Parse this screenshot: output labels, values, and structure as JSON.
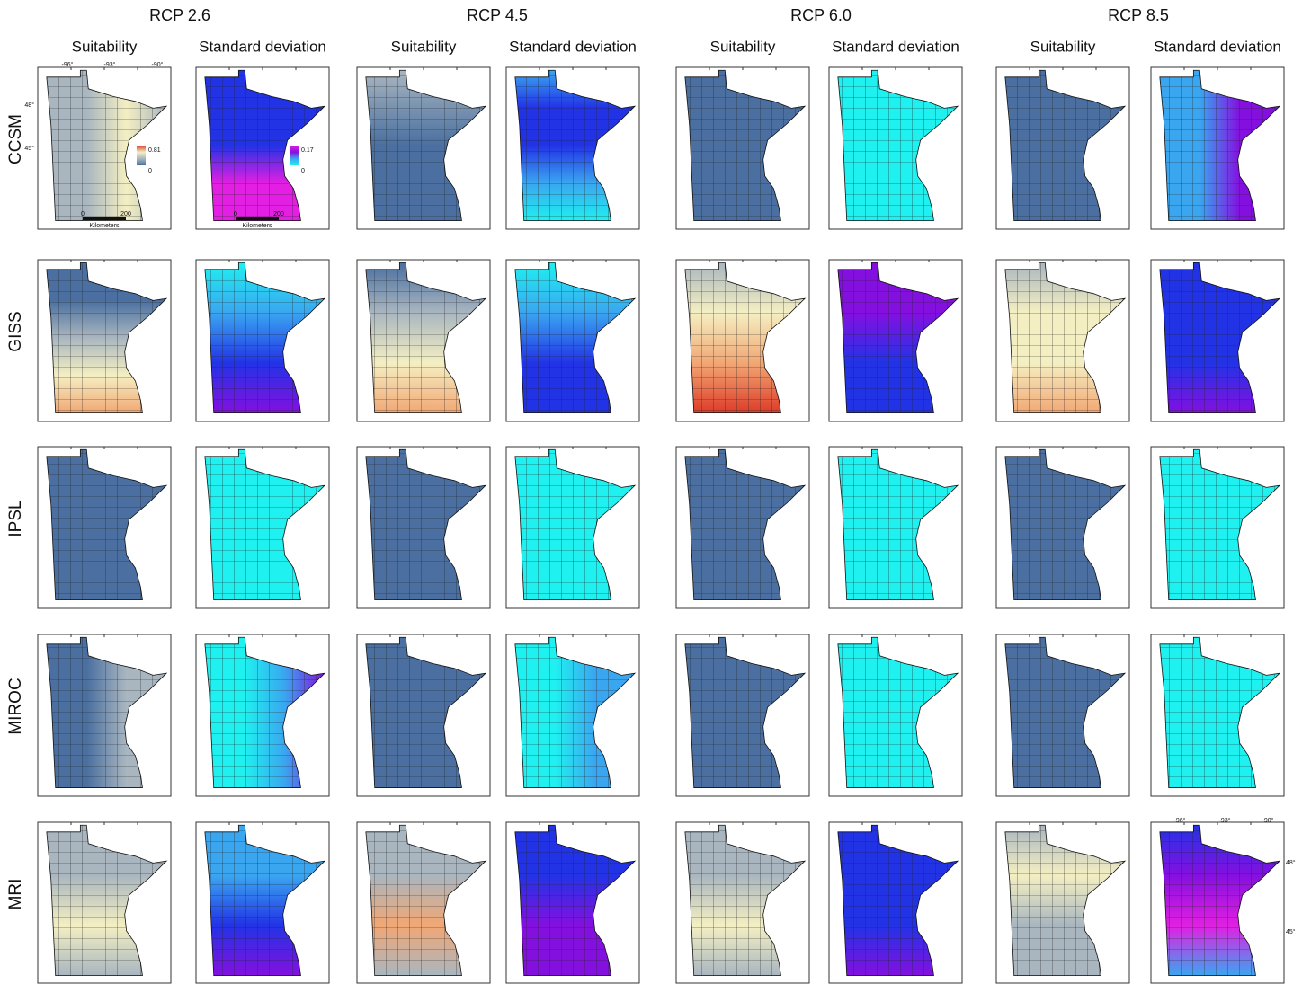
{
  "columns": [
    {
      "title": "RCP 2.6",
      "panels": [
        "Suitability",
        "Standard deviation"
      ]
    },
    {
      "title": "RCP 4.5",
      "panels": [
        "Suitability",
        "Standard deviation"
      ]
    },
    {
      "title": "RCP 6.0",
      "panels": [
        "Suitability",
        "Standard deviation"
      ]
    },
    {
      "title": "RCP 8.5",
      "panels": [
        "Suitability",
        "Standard deviation"
      ]
    }
  ],
  "rows": [
    "CCSM",
    "GISS",
    "IPSL",
    "MIROC",
    "MRI"
  ],
  "legends": [
    {
      "max": "0.81",
      "min": "0"
    },
    {
      "max": "0.17",
      "min": "0"
    }
  ],
  "scale_bar": {
    "labels": [
      "0",
      "200"
    ],
    "unit": "Kilometers"
  },
  "longitudes": [
    "-96°",
    "-93°",
    "-90°"
  ],
  "latitudes": [
    "48°",
    "45°"
  ]
}
